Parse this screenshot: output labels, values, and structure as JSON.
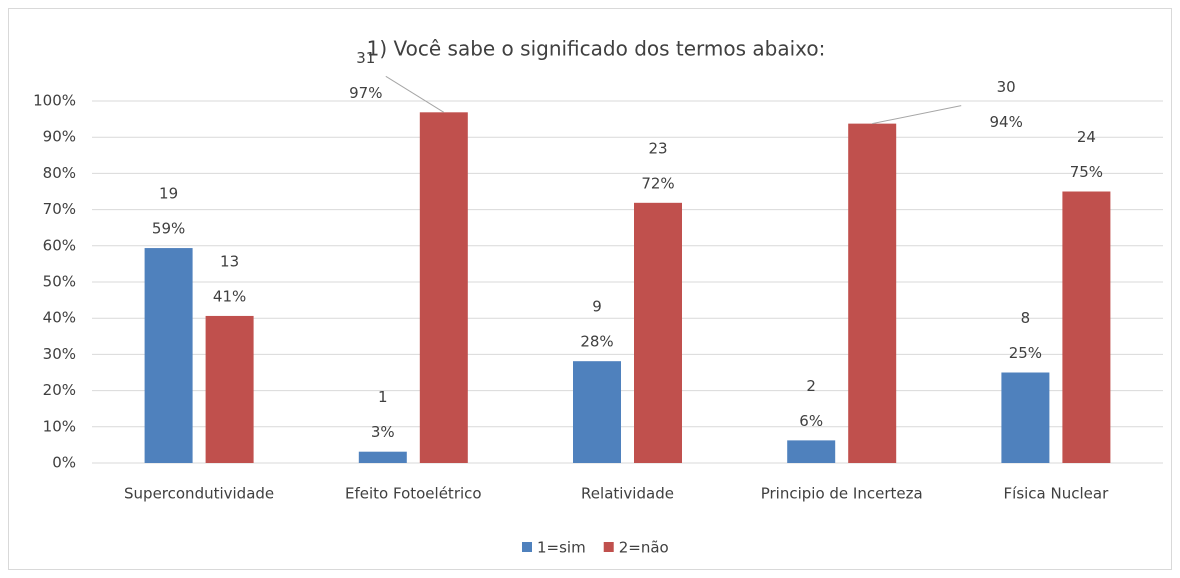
{
  "chart_data": {
    "type": "bar",
    "title": "1) Você sabe o significado dos termos abaixo:",
    "categories": [
      "Supercondutividade",
      "Efeito Fotoelétrico",
      "Relatividade",
      "Principio de Incerteza",
      "Física Nuclear"
    ],
    "series": [
      {
        "name": "1=sim",
        "color": "#4f81bd",
        "values": [
          59.375,
          3.125,
          28.125,
          6.25,
          25
        ],
        "value_labels": [
          "59%",
          "3%",
          "28%",
          "6%",
          "25%"
        ],
        "counts": [
          19,
          1,
          9,
          2,
          8
        ]
      },
      {
        "name": "2=não",
        "color": "#c0504d",
        "values": [
          40.625,
          96.875,
          71.875,
          93.75,
          75
        ],
        "value_labels": [
          "41%",
          "97%",
          "72%",
          "94%",
          "75%"
        ],
        "counts": [
          13,
          31,
          23,
          30,
          24
        ]
      }
    ],
    "ylim": [
      0,
      100
    ],
    "yticks": [
      {
        "value": 0,
        "label": "0%"
      },
      {
        "value": 10,
        "label": "10%"
      },
      {
        "value": 20,
        "label": "20%"
      },
      {
        "value": 30,
        "label": "30%"
      },
      {
        "value": 40,
        "label": "40%"
      },
      {
        "value": 50,
        "label": "50%"
      },
      {
        "value": 60,
        "label": "60%"
      },
      {
        "value": 70,
        "label": "70%"
      },
      {
        "value": 80,
        "label": "80%"
      },
      {
        "value": 90,
        "label": "90%"
      },
      {
        "value": 100,
        "label": "100%"
      }
    ],
    "grid": true,
    "legend": "bottom"
  }
}
